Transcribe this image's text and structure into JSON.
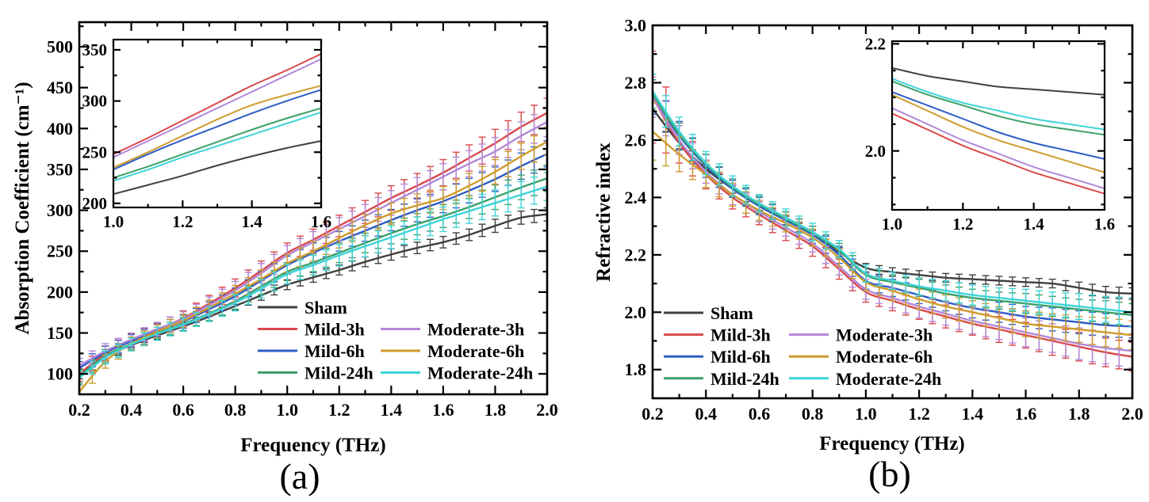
{
  "figure": {
    "background": "#ffffff"
  },
  "chart_data": [
    {
      "type": "line",
      "panel_label": "(a)",
      "xlabel": "Frequency (THz)",
      "ylabel": "Absorption Coefficient (cm⁻¹)",
      "xlim": [
        0.2,
        2.0
      ],
      "ylim": [
        75,
        530
      ],
      "xticks": [
        0.2,
        0.4,
        0.6,
        0.8,
        1.0,
        1.2,
        1.4,
        1.6,
        1.8,
        2.0
      ],
      "xtick_labels": [
        "0.2",
        "0.4",
        "0.6",
        "0.8",
        "1.0",
        "1.2",
        "1.4",
        "1.6",
        "1.8",
        "2.0"
      ],
      "xminor": [
        0.3,
        0.5,
        0.7,
        0.9,
        1.1,
        1.3,
        1.5,
        1.7,
        1.9
      ],
      "yticks": [
        100,
        150,
        200,
        250,
        300,
        350,
        400,
        450,
        500
      ],
      "ytick_labels": [
        "100",
        "150",
        "200",
        "250",
        "300",
        "350",
        "400",
        "450",
        "500"
      ],
      "yminor": [
        125,
        175,
        225,
        275,
        325,
        375,
        425,
        475,
        525
      ],
      "grid": false,
      "legend_position": "lower-right-inside",
      "x": [
        0.2,
        0.3,
        0.4,
        0.5,
        0.6,
        0.7,
        0.8,
        0.9,
        1.0,
        1.1,
        1.2,
        1.3,
        1.4,
        1.5,
        1.6,
        1.7,
        1.8,
        1.9,
        2.0
      ],
      "series": [
        {
          "name": "Sham",
          "color": "#404040",
          "legend_col": 0,
          "legend_row": 0,
          "values": [
            100,
            121,
            135,
            147,
            158,
            170,
            183,
            196,
            209,
            218,
            227,
            237,
            246,
            254,
            261,
            270,
            281,
            291,
            295
          ],
          "err": [
            6,
            5,
            5,
            5,
            5,
            5,
            5,
            6,
            6,
            6,
            6,
            6,
            7,
            7,
            7,
            7,
            8,
            8,
            8
          ]
        },
        {
          "name": "Mild-3h",
          "color": "#d9484c",
          "legend_col": 0,
          "legend_row": 1,
          "values": [
            100,
            125,
            141,
            154,
            168,
            186,
            205,
            226,
            248,
            264,
            281,
            298,
            315,
            330,
            346,
            364,
            382,
            402,
            419
          ],
          "err": [
            9,
            9,
            8,
            8,
            9,
            10,
            11,
            12,
            12,
            13,
            13,
            14,
            15,
            15,
            16,
            16,
            17,
            18,
            18
          ]
        },
        {
          "name": "Mild-6h",
          "color": "#2e5cc5",
          "legend_col": 0,
          "legend_row": 2,
          "values": [
            107,
            126,
            140,
            153,
            164,
            179,
            195,
            214,
            233,
            248,
            262,
            275,
            288,
            300,
            311,
            324,
            338,
            354,
            369
          ],
          "err": [
            8,
            8,
            8,
            8,
            8,
            9,
            10,
            11,
            11,
            12,
            12,
            13,
            13,
            14,
            14,
            15,
            15,
            16,
            16
          ]
        },
        {
          "name": "Mild-24h",
          "color": "#3ba068",
          "legend_col": 0,
          "legend_row": 3,
          "values": [
            97,
            122,
            137,
            150,
            161,
            174,
            189,
            207,
            225,
            236,
            248,
            260,
            272,
            283,
            293,
            304,
            316,
            328,
            339
          ],
          "err": [
            8,
            8,
            7,
            7,
            8,
            9,
            10,
            10,
            11,
            11,
            12,
            12,
            13,
            13,
            14,
            14,
            15,
            15,
            16
          ]
        },
        {
          "name": "Moderate-3h",
          "color": "#b388d9",
          "legend_col": 1,
          "legend_row": 1,
          "values": [
            110,
            128,
            142,
            155,
            167,
            184,
            202,
            223,
            245,
            261,
            277,
            293,
            309,
            325,
            341,
            357,
            372,
            391,
            408
          ],
          "err": [
            9,
            9,
            8,
            8,
            9,
            10,
            11,
            12,
            12,
            13,
            14,
            14,
            15,
            15,
            16,
            16,
            17,
            17,
            18
          ]
        },
        {
          "name": "Moderate-6h",
          "color": "#cf9c2e",
          "legend_col": 1,
          "legend_row": 2,
          "values": [
            78,
            115,
            137,
            152,
            165,
            181,
            198,
            216,
            235,
            250,
            266,
            282,
            296,
            306,
            315,
            330,
            347,
            366,
            384
          ],
          "err": [
            8,
            8,
            8,
            8,
            8,
            9,
            10,
            11,
            11,
            12,
            12,
            13,
            13,
            14,
            14,
            15,
            15,
            16,
            16
          ]
        },
        {
          "name": "Moderate-24h",
          "color": "#3ed3d8",
          "legend_col": 1,
          "legend_row": 3,
          "values": [
            95,
            120,
            136,
            149,
            160,
            173,
            187,
            204,
            222,
            233,
            245,
            256,
            267,
            278,
            289,
            299,
            309,
            319,
            329
          ],
          "err": [
            8,
            8,
            8,
            8,
            8,
            9,
            10,
            11,
            12,
            12,
            13,
            13,
            14,
            14,
            15,
            15,
            16,
            16,
            17
          ]
        }
      ],
      "inset": {
        "xlim": [
          1.0,
          1.6
        ],
        "ylim": [
          196,
          360
        ],
        "xticks": [
          1.0,
          1.2,
          1.4,
          1.6
        ],
        "xtick_labels": [
          "1.0",
          "1.2",
          "1.4",
          "1.6"
        ],
        "xminor": [
          1.1,
          1.3,
          1.5
        ],
        "yticks": [
          200,
          250,
          300,
          350
        ],
        "ytick_labels": [
          "200",
          "250",
          "300",
          "350"
        ],
        "yminor": [
          225,
          275,
          325
        ]
      }
    },
    {
      "type": "line",
      "panel_label": "(b)",
      "xlabel": "Frequency (THz)",
      "ylabel": "Refractive index",
      "xlim": [
        0.2,
        2.0
      ],
      "ylim": [
        1.7,
        3.0
      ],
      "xticks": [
        0.2,
        0.4,
        0.6,
        0.8,
        1.0,
        1.2,
        1.4,
        1.6,
        1.8,
        2.0
      ],
      "xtick_labels": [
        "0.2",
        "0.4",
        "0.6",
        "0.8",
        "1.0",
        "1.2",
        "1.4",
        "1.6",
        "1.8",
        "2.0"
      ],
      "xminor": [
        0.3,
        0.5,
        0.7,
        0.9,
        1.1,
        1.3,
        1.5,
        1.7,
        1.9
      ],
      "yticks": [
        1.8,
        2.0,
        2.2,
        2.4,
        2.6,
        2.8,
        3.0
      ],
      "ytick_labels": [
        "1.8",
        "2.0",
        "2.2",
        "2.4",
        "2.6",
        "2.8",
        "3.0"
      ],
      "yminor": [
        1.9,
        2.1,
        2.3,
        2.5,
        2.7,
        2.9
      ],
      "grid": false,
      "legend_position": "lower-left-inside",
      "x": [
        0.2,
        0.3,
        0.4,
        0.5,
        0.6,
        0.7,
        0.8,
        0.9,
        1.0,
        1.1,
        1.2,
        1.3,
        1.4,
        1.5,
        1.6,
        1.7,
        1.8,
        1.9,
        2.0
      ],
      "series": [
        {
          "name": "Sham",
          "color": "#404040",
          "legend_col": 0,
          "legend_row": 0,
          "values": [
            2.71,
            2.59,
            2.5,
            2.43,
            2.37,
            2.32,
            2.27,
            2.21,
            2.155,
            2.14,
            2.13,
            2.12,
            2.115,
            2.11,
            2.105,
            2.1,
            2.085,
            2.07,
            2.065
          ],
          "err": [
            0.02,
            0.02,
            0.015,
            0.015,
            0.015,
            0.015,
            0.015,
            0.015,
            0.015,
            0.015,
            0.015,
            0.015,
            0.015,
            0.015,
            0.015,
            0.015,
            0.02,
            0.02,
            0.02
          ]
        },
        {
          "name": "Mild-3h",
          "color": "#d9484c",
          "legend_col": 0,
          "legend_row": 1,
          "values": [
            2.75,
            2.59,
            2.48,
            2.4,
            2.34,
            2.285,
            2.23,
            2.15,
            2.07,
            2.04,
            2.01,
            1.985,
            1.96,
            1.94,
            1.92,
            1.9,
            1.88,
            1.86,
            1.845
          ],
          "err": [
            0.16,
            0.07,
            0.05,
            0.04,
            0.035,
            0.035,
            0.035,
            0.035,
            0.035,
            0.035,
            0.035,
            0.04,
            0.04,
            0.045,
            0.045,
            0.05,
            0.05,
            0.05,
            0.05
          ]
        },
        {
          "name": "Mild-6h",
          "color": "#2e5cc5",
          "legend_col": 0,
          "legend_row": 2,
          "values": [
            2.75,
            2.615,
            2.51,
            2.43,
            2.37,
            2.32,
            2.27,
            2.2,
            2.11,
            2.085,
            2.06,
            2.035,
            2.015,
            2.0,
            1.985,
            1.975,
            1.965,
            1.955,
            1.95
          ],
          "err": [
            0.06,
            0.05,
            0.04,
            0.03,
            0.03,
            0.03,
            0.03,
            0.03,
            0.03,
            0.03,
            0.03,
            0.03,
            0.035,
            0.035,
            0.035,
            0.04,
            0.04,
            0.04,
            0.04
          ]
        },
        {
          "name": "Mild-24h",
          "color": "#3ba068",
          "legend_col": 0,
          "legend_row": 3,
          "values": [
            2.76,
            2.62,
            2.515,
            2.435,
            2.375,
            2.325,
            2.275,
            2.215,
            2.13,
            2.105,
            2.085,
            2.065,
            2.05,
            2.04,
            2.03,
            2.02,
            2.01,
            2.0,
            1.99
          ],
          "err": [
            0.05,
            0.04,
            0.035,
            0.03,
            0.03,
            0.025,
            0.025,
            0.025,
            0.025,
            0.025,
            0.03,
            0.03,
            0.03,
            0.03,
            0.035,
            0.035,
            0.035,
            0.04,
            0.04
          ]
        },
        {
          "name": "Moderate-3h",
          "color": "#b388d9",
          "legend_col": 1,
          "legend_row": 1,
          "values": [
            2.75,
            2.6,
            2.49,
            2.41,
            2.35,
            2.295,
            2.24,
            2.16,
            2.08,
            2.05,
            2.02,
            1.995,
            1.97,
            1.95,
            1.93,
            1.91,
            1.89,
            1.875,
            1.865
          ],
          "err": [
            0.07,
            0.05,
            0.04,
            0.035,
            0.035,
            0.03,
            0.03,
            0.03,
            0.035,
            0.035,
            0.04,
            0.04,
            0.045,
            0.045,
            0.05,
            0.05,
            0.055,
            0.055,
            0.06
          ]
        },
        {
          "name": "Moderate-6h",
          "color": "#cf9c2e",
          "legend_col": 1,
          "legend_row": 2,
          "values": [
            2.63,
            2.55,
            2.48,
            2.41,
            2.355,
            2.31,
            2.26,
            2.19,
            2.105,
            2.075,
            2.045,
            2.02,
            2.0,
            1.98,
            1.96,
            1.95,
            1.94,
            1.93,
            1.92
          ],
          "err": [
            0.1,
            0.06,
            0.045,
            0.04,
            0.035,
            0.03,
            0.03,
            0.03,
            0.03,
            0.035,
            0.035,
            0.04,
            0.04,
            0.04,
            0.045,
            0.045,
            0.045,
            0.05,
            0.05
          ]
        },
        {
          "name": "Moderate-24h",
          "color": "#3ed3d8",
          "legend_col": 1,
          "legend_row": 3,
          "values": [
            2.77,
            2.63,
            2.52,
            2.44,
            2.38,
            2.33,
            2.28,
            2.22,
            2.135,
            2.11,
            2.09,
            2.075,
            2.06,
            2.05,
            2.04,
            2.03,
            2.02,
            2.01,
            2.0
          ],
          "err": [
            0.06,
            0.05,
            0.04,
            0.035,
            0.03,
            0.03,
            0.03,
            0.03,
            0.03,
            0.03,
            0.03,
            0.035,
            0.035,
            0.035,
            0.04,
            0.04,
            0.045,
            0.045,
            0.05
          ]
        }
      ],
      "inset": {
        "xlim": [
          1.0,
          1.6
        ],
        "ylim": [
          1.89,
          2.205
        ],
        "xticks": [
          1.0,
          1.2,
          1.4,
          1.6
        ],
        "xtick_labels": [
          "1.0",
          "1.2",
          "1.4",
          "1.6"
        ],
        "xminor": [
          1.1,
          1.3,
          1.5
        ],
        "yticks": [
          2.0,
          2.2
        ],
        "ytick_labels": [
          "2.0",
          "2.2"
        ],
        "yminor": [
          1.9,
          1.95,
          2.05,
          2.1,
          2.15
        ]
      }
    }
  ]
}
